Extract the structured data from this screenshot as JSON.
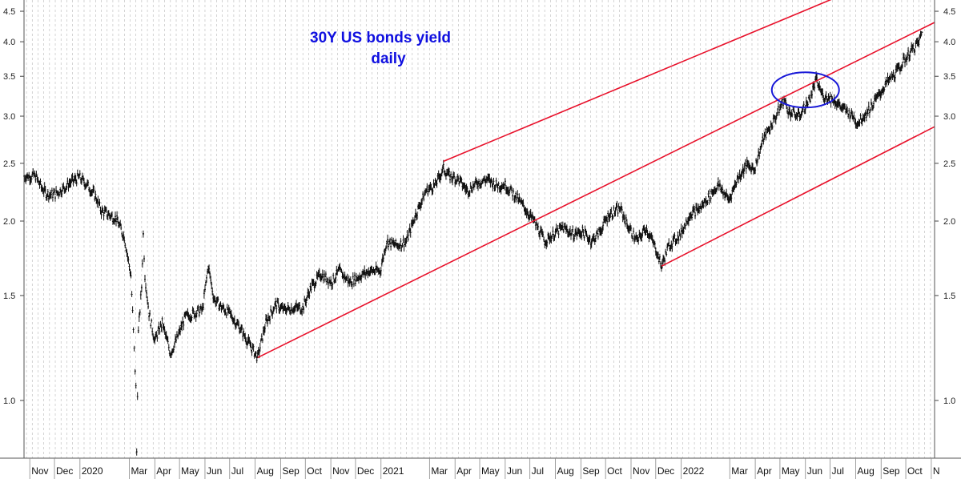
{
  "chart_data": {
    "type": "line",
    "title": "30Y US bonds yield",
    "subtitle": "daily",
    "xlabel": "",
    "ylabel": "",
    "y_scale": "log",
    "ylim": [
      0.8,
      4.7
    ],
    "xlim": [
      "2019-10-25",
      "2022-11-05"
    ],
    "grid": {
      "vertical": true,
      "horizontal": false
    },
    "y_ticks": [
      "1.0",
      "1.5",
      "2.0",
      "2.5",
      "3.0",
      "3.5",
      "4.0",
      "4.5"
    ],
    "x_ticks": [
      {
        "label": "Nov",
        "date": "2019-11-01"
      },
      {
        "label": "Dec",
        "date": "2019-12-01"
      },
      {
        "label": "2020",
        "date": "2020-01-01"
      },
      {
        "label": "Mar",
        "date": "2020-03-01"
      },
      {
        "label": "Apr",
        "date": "2020-04-01"
      },
      {
        "label": "May",
        "date": "2020-05-01"
      },
      {
        "label": "Jun",
        "date": "2020-06-01"
      },
      {
        "label": "Jul",
        "date": "2020-07-01"
      },
      {
        "label": "Aug",
        "date": "2020-08-01"
      },
      {
        "label": "Sep",
        "date": "2020-09-01"
      },
      {
        "label": "Oct",
        "date": "2020-10-01"
      },
      {
        "label": "Nov",
        "date": "2020-11-01"
      },
      {
        "label": "Dec",
        "date": "2020-12-01"
      },
      {
        "label": "2021",
        "date": "2021-01-01"
      },
      {
        "label": "Mar",
        "date": "2021-03-01"
      },
      {
        "label": "Apr",
        "date": "2021-04-01"
      },
      {
        "label": "May",
        "date": "2021-05-01"
      },
      {
        "label": "Jun",
        "date": "2021-06-01"
      },
      {
        "label": "Jul",
        "date": "2021-07-01"
      },
      {
        "label": "Aug",
        "date": "2021-08-01"
      },
      {
        "label": "Sep",
        "date": "2021-09-01"
      },
      {
        "label": "Oct",
        "date": "2021-10-01"
      },
      {
        "label": "Nov",
        "date": "2021-11-01"
      },
      {
        "label": "Dec",
        "date": "2021-12-01"
      },
      {
        "label": "2022",
        "date": "2022-01-01"
      },
      {
        "label": "Mar",
        "date": "2022-03-01"
      },
      {
        "label": "Apr",
        "date": "2022-04-01"
      },
      {
        "label": "May",
        "date": "2022-05-01"
      },
      {
        "label": "Jun",
        "date": "2022-06-01"
      },
      {
        "label": "Jul",
        "date": "2022-07-01"
      },
      {
        "label": "Aug",
        "date": "2022-08-01"
      },
      {
        "label": "Sep",
        "date": "2022-09-01"
      },
      {
        "label": "Oct",
        "date": "2022-10-01"
      },
      {
        "label": "N",
        "date": "2022-11-01"
      }
    ],
    "series": [
      {
        "points": [
          [
            "2019-10-25",
            2.38
          ],
          [
            "2019-11-08",
            2.38
          ],
          [
            "2019-11-15",
            2.28
          ],
          [
            "2019-11-22",
            2.22
          ],
          [
            "2019-12-02",
            2.22
          ],
          [
            "2019-12-12",
            2.27
          ],
          [
            "2019-12-20",
            2.32
          ],
          [
            "2019-12-31",
            2.37
          ],
          [
            "2020-01-10",
            2.3
          ],
          [
            "2020-01-20",
            2.2
          ],
          [
            "2020-01-27",
            2.08
          ],
          [
            "2020-02-05",
            2.05
          ],
          [
            "2020-02-14",
            2.02
          ],
          [
            "2020-02-24",
            1.88
          ],
          [
            "2020-03-03",
            1.62
          ],
          [
            "2020-03-09",
            1.05
          ],
          [
            "2020-03-10",
            0.82
          ],
          [
            "2020-03-12",
            1.3
          ],
          [
            "2020-03-16",
            1.55
          ],
          [
            "2020-03-18",
            1.9
          ],
          [
            "2020-03-20",
            1.62
          ],
          [
            "2020-03-25",
            1.4
          ],
          [
            "2020-04-01",
            1.26
          ],
          [
            "2020-04-10",
            1.35
          ],
          [
            "2020-04-20",
            1.2
          ],
          [
            "2020-04-29",
            1.28
          ],
          [
            "2020-05-08",
            1.38
          ],
          [
            "2020-05-18",
            1.4
          ],
          [
            "2020-05-29",
            1.42
          ],
          [
            "2020-06-05",
            1.68
          ],
          [
            "2020-06-12",
            1.48
          ],
          [
            "2020-06-22",
            1.43
          ],
          [
            "2020-07-01",
            1.4
          ],
          [
            "2020-07-14",
            1.32
          ],
          [
            "2020-07-24",
            1.25
          ],
          [
            "2020-08-04",
            1.18
          ],
          [
            "2020-08-14",
            1.35
          ],
          [
            "2020-08-26",
            1.45
          ],
          [
            "2020-09-04",
            1.42
          ],
          [
            "2020-09-16",
            1.43
          ],
          [
            "2020-09-28",
            1.43
          ],
          [
            "2020-10-08",
            1.55
          ],
          [
            "2020-10-20",
            1.63
          ],
          [
            "2020-11-02",
            1.58
          ],
          [
            "2020-11-11",
            1.65
          ],
          [
            "2020-11-24",
            1.58
          ],
          [
            "2020-12-07",
            1.62
          ],
          [
            "2020-12-18",
            1.65
          ],
          [
            "2020-12-31",
            1.65
          ],
          [
            "2021-01-08",
            1.85
          ],
          [
            "2021-01-20",
            1.82
          ],
          [
            "2021-02-01",
            1.85
          ],
          [
            "2021-02-12",
            2.05
          ],
          [
            "2021-02-25",
            2.25
          ],
          [
            "2021-03-08",
            2.3
          ],
          [
            "2021-03-18",
            2.45
          ],
          [
            "2021-03-25",
            2.38
          ],
          [
            "2021-04-05",
            2.35
          ],
          [
            "2021-04-16",
            2.25
          ],
          [
            "2021-04-28",
            2.32
          ],
          [
            "2021-05-10",
            2.35
          ],
          [
            "2021-05-21",
            2.3
          ],
          [
            "2021-06-01",
            2.3
          ],
          [
            "2021-06-14",
            2.2
          ],
          [
            "2021-06-25",
            2.1
          ],
          [
            "2021-07-06",
            2.0
          ],
          [
            "2021-07-19",
            1.85
          ],
          [
            "2021-07-30",
            1.9
          ],
          [
            "2021-08-10",
            1.95
          ],
          [
            "2021-08-23",
            1.9
          ],
          [
            "2021-09-03",
            1.92
          ],
          [
            "2021-09-14",
            1.85
          ],
          [
            "2021-09-24",
            1.92
          ],
          [
            "2021-10-05",
            2.05
          ],
          [
            "2021-10-19",
            2.1
          ],
          [
            "2021-10-29",
            1.95
          ],
          [
            "2021-11-09",
            1.85
          ],
          [
            "2021-11-19",
            1.95
          ],
          [
            "2021-12-01",
            1.8
          ],
          [
            "2021-12-08",
            1.68
          ],
          [
            "2021-12-17",
            1.82
          ],
          [
            "2021-12-31",
            1.9
          ],
          [
            "2022-01-11",
            2.05
          ],
          [
            "2022-01-24",
            2.1
          ],
          [
            "2022-02-04",
            2.2
          ],
          [
            "2022-02-15",
            2.3
          ],
          [
            "2022-02-28",
            2.17
          ],
          [
            "2022-03-10",
            2.35
          ],
          [
            "2022-03-21",
            2.48
          ],
          [
            "2022-03-31",
            2.45
          ],
          [
            "2022-04-11",
            2.75
          ],
          [
            "2022-04-22",
            2.92
          ],
          [
            "2022-05-06",
            3.2
          ],
          [
            "2022-05-12",
            3.05
          ],
          [
            "2022-05-24",
            3.0
          ],
          [
            "2022-06-06",
            3.2
          ],
          [
            "2022-06-14",
            3.45
          ],
          [
            "2022-06-22",
            3.25
          ],
          [
            "2022-07-05",
            3.2
          ],
          [
            "2022-07-15",
            3.1
          ],
          [
            "2022-07-29",
            3.0
          ],
          [
            "2022-08-03",
            2.92
          ],
          [
            "2022-08-15",
            3.05
          ],
          [
            "2022-08-26",
            3.2
          ],
          [
            "2022-09-07",
            3.4
          ],
          [
            "2022-09-19",
            3.55
          ],
          [
            "2022-09-28",
            3.7
          ],
          [
            "2022-10-07",
            3.85
          ],
          [
            "2022-10-17",
            4.0
          ],
          [
            "2022-10-21",
            4.15
          ]
        ]
      }
    ],
    "channel_lines": [
      {
        "color": "#e8102a",
        "points": [
          [
            "2020-08-04",
            1.18
          ],
          [
            "2022-11-05",
            4.31
          ]
        ]
      },
      {
        "color": "#e8102a",
        "points": [
          [
            "2021-03-18",
            2.52
          ],
          [
            "2022-07-04",
            4.72
          ]
        ]
      },
      {
        "color": "#e8102a",
        "points": [
          [
            "2021-12-08",
            1.68
          ],
          [
            "2022-11-05",
            2.88
          ]
        ]
      }
    ],
    "ellipse_highlight": {
      "color": "#1a1ad8",
      "center": [
        "2022-06-01",
        3.32
      ]
    }
  },
  "colors": {
    "price": "#111111",
    "trendline": "#e8102a",
    "title": "#1010e0",
    "grid": "#b8b8b8"
  }
}
